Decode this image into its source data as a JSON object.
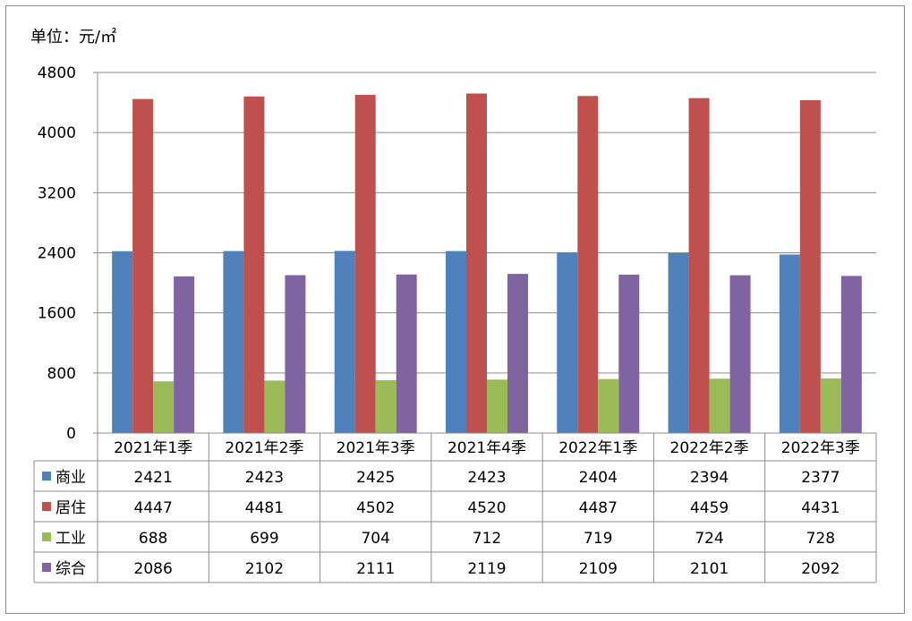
{
  "chart_data": {
    "type": "bar",
    "unit_label": "单位：元/㎡",
    "categories": [
      "2021年1季",
      "2021年2季",
      "2021年3季",
      "2021年4季",
      "2022年1季",
      "2022年2季",
      "2022年3季"
    ],
    "series": [
      {
        "name": "商业",
        "color": "#4f81bd",
        "values": [
          2421,
          2423,
          2425,
          2423,
          2404,
          2394,
          2377
        ]
      },
      {
        "name": "居住",
        "color": "#c0504d",
        "values": [
          4447,
          4481,
          4502,
          4520,
          4487,
          4459,
          4431
        ]
      },
      {
        "name": "工业",
        "color": "#9bbb59",
        "values": [
          688,
          699,
          704,
          712,
          719,
          724,
          728
        ]
      },
      {
        "name": "综合",
        "color": "#8064a2",
        "values": [
          2086,
          2102,
          2111,
          2119,
          2109,
          2101,
          2092
        ]
      }
    ],
    "ylim": [
      0,
      4800
    ],
    "yticks": [
      0,
      800,
      1600,
      2400,
      3200,
      4000,
      4800
    ],
    "grid": true,
    "legend": "data-table"
  }
}
